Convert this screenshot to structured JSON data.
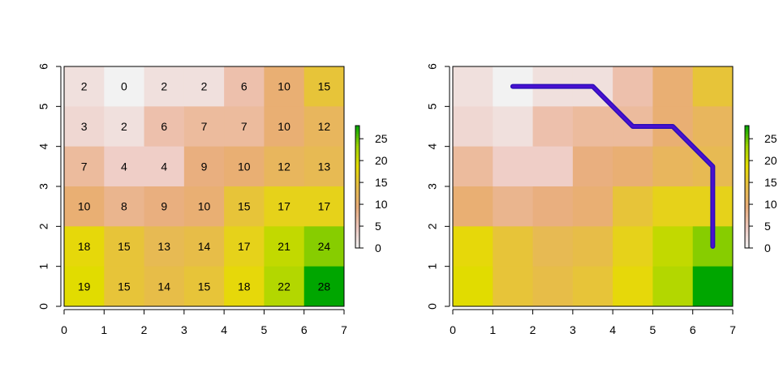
{
  "chart_data": [
    {
      "type": "heatmap",
      "title": "",
      "xlabel": "",
      "ylabel": "",
      "xlim": [
        0,
        7
      ],
      "ylim": [
        0,
        6
      ],
      "x_ticks": [
        "0",
        "1",
        "2",
        "3",
        "4",
        "5",
        "6",
        "7"
      ],
      "y_ticks": [
        "0",
        "1",
        "2",
        "3",
        "4",
        "5",
        "6"
      ],
      "show_cell_labels": true,
      "values": [
        [
          2,
          0,
          2,
          2,
          6,
          10,
          15
        ],
        [
          3,
          2,
          6,
          7,
          7,
          10,
          12
        ],
        [
          7,
          4,
          4,
          9,
          10,
          12,
          13
        ],
        [
          10,
          8,
          9,
          10,
          15,
          17,
          17
        ],
        [
          18,
          15,
          13,
          14,
          17,
          21,
          24
        ],
        [
          19,
          15,
          14,
          15,
          18,
          22,
          28
        ]
      ],
      "legend": {
        "placement": "right",
        "range": [
          0,
          28
        ],
        "ticks": [
          "0",
          "5",
          "10",
          "15",
          "20",
          "25"
        ]
      },
      "grid": false
    },
    {
      "type": "heatmap",
      "title": "",
      "xlabel": "",
      "ylabel": "",
      "xlim": [
        0,
        7
      ],
      "ylim": [
        0,
        6
      ],
      "x_ticks": [
        "0",
        "1",
        "2",
        "3",
        "4",
        "5",
        "6",
        "7"
      ],
      "y_ticks": [
        "0",
        "1",
        "2",
        "3",
        "4",
        "5",
        "6"
      ],
      "show_cell_labels": false,
      "values": [
        [
          2,
          0,
          2,
          2,
          6,
          10,
          15
        ],
        [
          3,
          2,
          6,
          7,
          7,
          10,
          12
        ],
        [
          7,
          4,
          4,
          9,
          10,
          12,
          13
        ],
        [
          10,
          8,
          9,
          10,
          15,
          17,
          17
        ],
        [
          18,
          15,
          13,
          14,
          17,
          21,
          24
        ],
        [
          19,
          15,
          14,
          15,
          18,
          22,
          28
        ]
      ],
      "path": {
        "color": "#4b0fd0",
        "points": [
          [
            1.5,
            5.5
          ],
          [
            3.5,
            5.5
          ],
          [
            4.5,
            4.5
          ],
          [
            5.5,
            4.5
          ],
          [
            6.5,
            3.5
          ],
          [
            6.5,
            1.5
          ]
        ]
      },
      "legend": {
        "placement": "right",
        "range": [
          0,
          28
        ],
        "ticks": [
          "0",
          "5",
          "10",
          "15",
          "20",
          "25"
        ]
      },
      "grid": false
    }
  ],
  "colors": {
    "scale": [
      "#f2f2f2",
      "#eec8c0",
      "#e9ad7a",
      "#e7bd48",
      "#e6dd00",
      "#9ed400",
      "#00a600"
    ]
  }
}
